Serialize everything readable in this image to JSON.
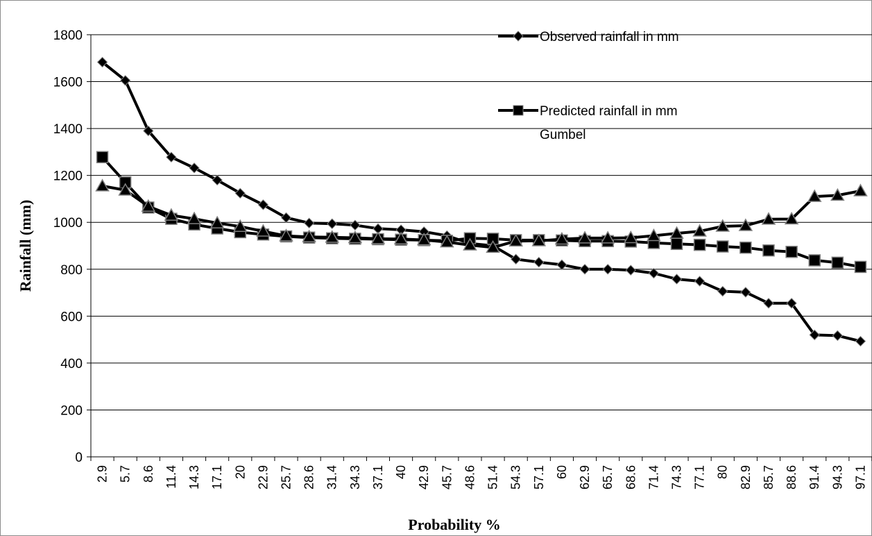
{
  "chart_data": {
    "type": "line",
    "title": "",
    "xlabel": "Probability %",
    "ylabel": "Rainfall (mm)",
    "ylim": [
      0,
      1800
    ],
    "yticks": [
      0,
      200,
      400,
      600,
      800,
      1000,
      1200,
      1400,
      1600,
      1800
    ],
    "grid": "horizontal",
    "legend_position": "top-right",
    "categories": [
      "2.9",
      "5.7",
      "8.6",
      "11.4",
      "14.3",
      "17.1",
      "20",
      "22.9",
      "25.7",
      "28.6",
      "31.4",
      "34.3",
      "37.1",
      "40",
      "42.9",
      "45.7",
      "48.6",
      "51.4",
      "54.3",
      "57.1",
      "60",
      "62.9",
      "65.7",
      "68.6",
      "71.4",
      "74.3",
      "77.1",
      "80",
      "82.9",
      "85.7",
      "88.6",
      "91.4",
      "94.3",
      "97.1"
    ],
    "series": [
      {
        "name": "Observed rainfall in mm",
        "marker": "diamond",
        "color": "#000000",
        "values": [
          1683,
          1605,
          1390,
          1278,
          1232,
          1180,
          1124,
          1075,
          1020,
          997,
          994,
          988,
          973,
          968,
          960,
          943,
          910,
          900,
          843,
          830,
          819,
          800,
          800,
          796,
          783,
          758,
          749,
          706,
          702,
          655,
          655,
          520,
          517,
          493
        ]
      },
      {
        "name": "Predicted rainfall in mm Gumbel",
        "name_lines": [
          "Predicted rainfall in mm",
          "Gumbel"
        ],
        "marker": "square",
        "color": "#000000",
        "values": [
          1278,
          1170,
          1063,
          1015,
          991,
          974,
          958,
          948,
          940,
          935,
          932,
          930,
          928,
          926,
          924,
          921,
          932,
          930,
          924,
          924,
          923,
          920,
          920,
          918,
          912,
          908,
          904,
          897,
          892,
          880,
          874,
          838,
          828,
          810
        ]
      },
      {
        "marker": "triangle",
        "color": "#000000",
        "values": [
          1155,
          1137,
          1068,
          1030,
          1015,
          997,
          982,
          962,
          942,
          938,
          936,
          934,
          930,
          929,
          925,
          916,
          903,
          893,
          920,
          921,
          928,
          933,
          933,
          934,
          943,
          953,
          962,
          983,
          986,
          1013,
          1014,
          1110,
          1115,
          1134
        ]
      }
    ]
  }
}
